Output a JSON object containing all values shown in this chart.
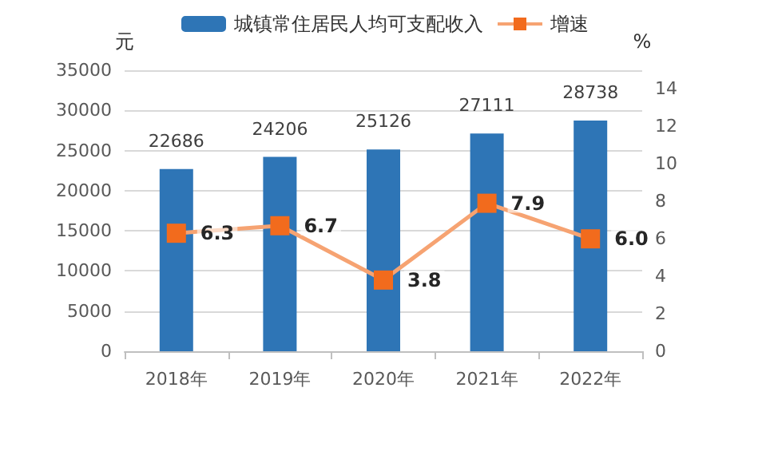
{
  "chart_data": {
    "type": "bar",
    "categories": [
      "2018年",
      "2019年",
      "2020年",
      "2021年",
      "2022年"
    ],
    "ylabel": "元",
    "y2label": "%",
    "series": [
      {
        "name": "城镇常住居民人均可支配收入",
        "color": "#2e75b6",
        "values": [
          22686,
          24206,
          25126,
          27111,
          28738
        ],
        "data_labels": true
      },
      {
        "name": "增速",
        "type": "line",
        "axis": "y2",
        "color": "#f26b1d",
        "marker": "square",
        "values": [
          6.3,
          6.7,
          3.8,
          7.9,
          6.0
        ],
        "value_labels": [
          "6.3",
          "6.7",
          "3.8",
          "7.9",
          "6.0"
        ]
      }
    ],
    "ylim": [
      0,
      35000
    ],
    "yticks": [
      0,
      5000,
      10000,
      15000,
      20000,
      25000,
      30000,
      35000
    ],
    "y2lim": [
      0,
      15
    ],
    "y2ticks": [
      0,
      2,
      4,
      6,
      8,
      10,
      12,
      14
    ],
    "grid": "y",
    "legend": "top"
  }
}
